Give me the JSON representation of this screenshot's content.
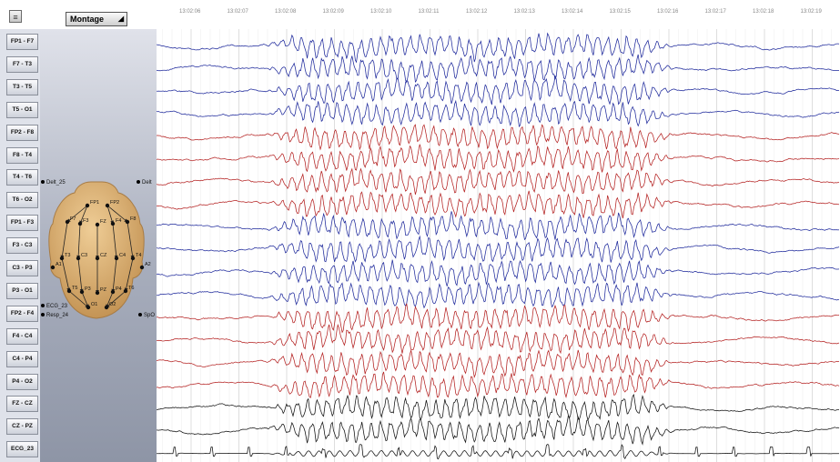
{
  "toolbar": {
    "montage_label": "Montage"
  },
  "time_axis": {
    "labels": [
      "13:02:06",
      "13:02:07",
      "13:02:08",
      "13:02:09",
      "13:02:10",
      "13:02:11",
      "13:02:12",
      "13:02:13",
      "13:02:14",
      "13:02:15",
      "13:02:16",
      "13:02:17",
      "13:02:18",
      "13:02:19"
    ]
  },
  "channels": [
    {
      "label": "FP1 - F7",
      "color": "#1f2a9c"
    },
    {
      "label": "F7 - T3",
      "color": "#1f2a9c"
    },
    {
      "label": "T3 - T5",
      "color": "#1f2a9c"
    },
    {
      "label": "T5 - O1",
      "color": "#1f2a9c"
    },
    {
      "label": "FP2 - F8",
      "color": "#b42121"
    },
    {
      "label": "F8 - T4",
      "color": "#b42121"
    },
    {
      "label": "T4 - T6",
      "color": "#b42121"
    },
    {
      "label": "T6 - O2",
      "color": "#b42121"
    },
    {
      "label": "FP1 - F3",
      "color": "#1f2a9c"
    },
    {
      "label": "F3 - C3",
      "color": "#1f2a9c"
    },
    {
      "label": "C3 - P3",
      "color": "#1f2a9c"
    },
    {
      "label": "P3 - O1",
      "color": "#1f2a9c"
    },
    {
      "label": "FP2 - F4",
      "color": "#b42121"
    },
    {
      "label": "F4 - C4",
      "color": "#b42121"
    },
    {
      "label": "C4 - P4",
      "color": "#b42121"
    },
    {
      "label": "P4 - O2",
      "color": "#b42121"
    },
    {
      "label": "FZ - CZ",
      "color": "#111111"
    },
    {
      "label": "CZ - PZ",
      "color": "#111111"
    },
    {
      "label": "ECG_23",
      "color": "#111111"
    }
  ],
  "head_diagram": {
    "electrodes": [
      "FP1",
      "FP2",
      "F7",
      "F3",
      "FZ",
      "F4",
      "F8",
      "T3",
      "C3",
      "CZ",
      "C4",
      "T4",
      "T5",
      "P3",
      "PZ",
      "P4",
      "T6",
      "O1",
      "O2",
      "A1",
      "A2"
    ],
    "side_labels": {
      "left_top": "Delt_25",
      "right_top": "Delt",
      "left_bottom_1": "ECG_23",
      "left_bottom_2": "Resp_24",
      "right_bottom": "SpO"
    }
  },
  "colors": {
    "left_hemisphere": "#1f2a9c",
    "right_hemisphere": "#b42121",
    "midline": "#111111",
    "head_fill": "#d9b27a"
  }
}
